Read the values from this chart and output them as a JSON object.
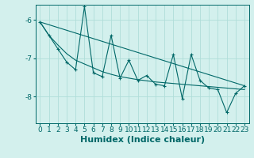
{
  "xlabel": "Humidex (Indice chaleur)",
  "xlim": [
    -0.5,
    23.5
  ],
  "ylim": [
    -8.7,
    -5.6
  ],
  "yticks": [
    -8,
    -7,
    -6
  ],
  "xticks": [
    0,
    1,
    2,
    3,
    4,
    5,
    6,
    7,
    8,
    9,
    10,
    11,
    12,
    13,
    14,
    15,
    16,
    17,
    18,
    19,
    20,
    21,
    22,
    23
  ],
  "bg_color": "#d3f0ed",
  "grid_color": "#b0ddd9",
  "line_color": "#006868",
  "series1_x": [
    0,
    1,
    2,
    3,
    4,
    5,
    6,
    7,
    8,
    9,
    10,
    11,
    12,
    13,
    14,
    15,
    16,
    17,
    18,
    19,
    20,
    21,
    22,
    23
  ],
  "series1_y": [
    -6.05,
    -6.4,
    -6.75,
    -7.1,
    -7.3,
    -5.65,
    -7.38,
    -7.48,
    -6.4,
    -7.52,
    -7.05,
    -7.58,
    -7.45,
    -7.68,
    -7.72,
    -6.9,
    -8.05,
    -6.9,
    -7.58,
    -7.78,
    -7.82,
    -8.42,
    -7.92,
    -7.72
  ],
  "series2_x": [
    0,
    23
  ],
  "series2_y": [
    -6.05,
    -7.72
  ],
  "series3_x": [
    0,
    1,
    2,
    3,
    4,
    5,
    6,
    7,
    8,
    9,
    10,
    11,
    12,
    13,
    14,
    15,
    16,
    17,
    18,
    19,
    20,
    21,
    22,
    23
  ],
  "series3_y": [
    -6.05,
    -6.4,
    -6.65,
    -6.88,
    -7.05,
    -7.15,
    -7.25,
    -7.35,
    -7.42,
    -7.48,
    -7.52,
    -7.56,
    -7.59,
    -7.62,
    -7.64,
    -7.66,
    -7.68,
    -7.7,
    -7.72,
    -7.74,
    -7.76,
    -7.78,
    -7.8,
    -7.82
  ],
  "xlabel_fontsize": 8,
  "tick_fontsize": 6.5,
  "ylabel_color": "#006868"
}
